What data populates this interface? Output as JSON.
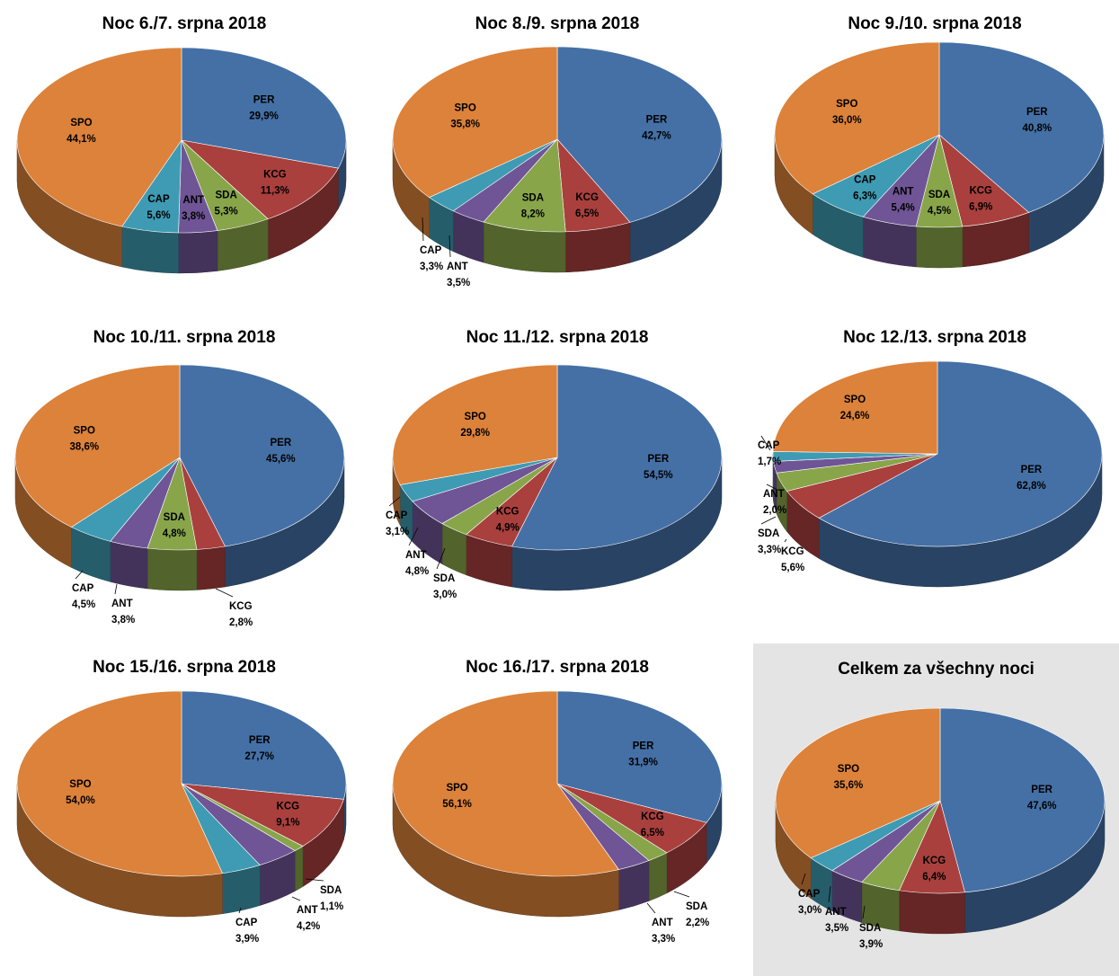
{
  "colors": {
    "PER": "#4470a6",
    "SPO": "#dc823a",
    "KCG": "#a9403d",
    "SDA": "#88a54a",
    "ANT": "#6f5596",
    "CAP": "#3e9bb3"
  },
  "chart_data": [
    {
      "type": "pie",
      "title": "Noc 6./7. srpna 2018",
      "labels": [
        "PER",
        "KCG",
        "SDA",
        "ANT",
        "CAP",
        "SPO"
      ],
      "display": [
        "29,9%",
        "11,3%",
        "5,3%",
        "3,8%",
        "5,6%",
        "44,1%"
      ],
      "values": [
        29.9,
        11.3,
        5.3,
        3.8,
        5.6,
        44.1
      ]
    },
    {
      "type": "pie",
      "title": "Noc 8./9. srpna 2018",
      "labels": [
        "PER",
        "KCG",
        "SDA",
        "ANT",
        "CAP",
        "SPO"
      ],
      "display": [
        "42,7%",
        "6,5%",
        "8,2%",
        "3,5%",
        "3,3%",
        "35,8%"
      ],
      "values": [
        42.7,
        6.5,
        8.2,
        3.5,
        3.3,
        35.8
      ]
    },
    {
      "type": "pie",
      "title": "Noc 9./10. srpna 2018",
      "labels": [
        "PER",
        "KCG",
        "SDA",
        "ANT",
        "CAP",
        "SPO"
      ],
      "display": [
        "40,8%",
        "6,9%",
        "4,5%",
        "5,4%",
        "6,3%",
        "36,0%"
      ],
      "values": [
        40.8,
        6.9,
        4.5,
        5.4,
        6.3,
        36.0
      ]
    },
    {
      "type": "pie",
      "title": "Noc 10./11. srpna 2018",
      "labels": [
        "PER",
        "KCG",
        "SDA",
        "ANT",
        "CAP",
        "SPO"
      ],
      "display": [
        "45,6%",
        "2,8%",
        "4,8%",
        "3,8%",
        "4,5%",
        "38,6%"
      ],
      "values": [
        45.6,
        2.8,
        4.8,
        3.8,
        4.5,
        38.6
      ]
    },
    {
      "type": "pie",
      "title": "Noc 11./12. srpna 2018",
      "labels": [
        "PER",
        "KCG",
        "SDA",
        "ANT",
        "CAP",
        "SPO"
      ],
      "display": [
        "54,5%",
        "4,9%",
        "3,0%",
        "4,8%",
        "3,1%",
        "29,8%"
      ],
      "values": [
        54.5,
        4.9,
        3.0,
        4.8,
        3.1,
        29.8
      ]
    },
    {
      "type": "pie",
      "title": "Noc 12./13. srpna 2018",
      "labels": [
        "PER",
        "KCG",
        "SDA",
        "ANT",
        "CAP",
        "SPO"
      ],
      "display": [
        "62,8%",
        "5,6%",
        "3,3%",
        "2,0%",
        "1,7%",
        "24,6%"
      ],
      "values": [
        62.8,
        5.6,
        3.3,
        2.0,
        1.7,
        24.6
      ]
    },
    {
      "type": "pie",
      "title": "Noc 15./16. srpna 2018",
      "labels": [
        "PER",
        "KCG",
        "SDA",
        "ANT",
        "CAP",
        "SPO"
      ],
      "display": [
        "27,7%",
        "9,1%",
        "1,1%",
        "4,2%",
        "3,9%",
        "54,0%"
      ],
      "values": [
        27.7,
        9.1,
        1.1,
        4.2,
        3.9,
        54.0
      ]
    },
    {
      "type": "pie",
      "title": "Noc 16./17. srpna 2018",
      "labels": [
        "PER",
        "KCG",
        "SDA",
        "ANT",
        "SPO"
      ],
      "display": [
        "31,9%",
        "6,5%",
        "2,2%",
        "3,3%",
        "56,1%"
      ],
      "values": [
        31.9,
        6.5,
        2.2,
        3.3,
        56.1
      ]
    },
    {
      "type": "pie",
      "title": "Celkem za všechny noci",
      "labels": [
        "PER",
        "KCG",
        "SDA",
        "ANT",
        "CAP",
        "SPO"
      ],
      "display": [
        "47,6%",
        "6,4%",
        "3,9%",
        "3,5%",
        "3,0%",
        "35,6%"
      ],
      "values": [
        47.6,
        6.4,
        3.9,
        3.5,
        3.0,
        35.6
      ]
    }
  ]
}
